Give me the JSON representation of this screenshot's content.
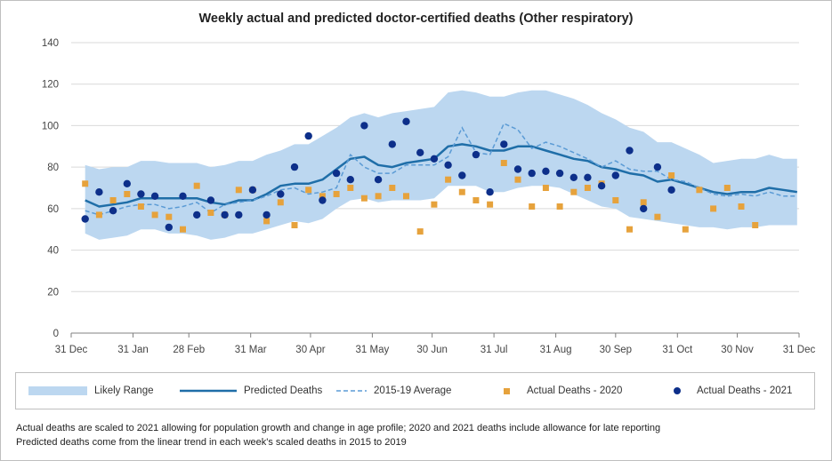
{
  "chart_data": {
    "type": "line",
    "title": "Weekly actual and predicted doctor-certified deaths (Other respiratory)",
    "xlabel": "",
    "ylabel": "",
    "ylim": [
      0,
      140
    ],
    "yticks": [
      0,
      20,
      40,
      60,
      80,
      100,
      120,
      140
    ],
    "xlim": [
      0,
      365
    ],
    "xticks": [
      {
        "label": "31 Dec",
        "day": 0
      },
      {
        "label": "31 Jan",
        "day": 31
      },
      {
        "label": "28 Feb",
        "day": 59
      },
      {
        "label": "31 Mar",
        "day": 90
      },
      {
        "label": "30 Apr",
        "day": 120
      },
      {
        "label": "31 May",
        "day": 151
      },
      {
        "label": "30 Jun",
        "day": 181
      },
      {
        "label": "31 Jul",
        "day": 212
      },
      {
        "label": "31 Aug",
        "day": 243
      },
      {
        "label": "30 Sep",
        "day": 273
      },
      {
        "label": "31 Oct",
        "day": 304
      },
      {
        "label": "30 Nov",
        "day": 334
      },
      {
        "label": "31 Dec",
        "day": 365
      }
    ],
    "x_week_days": [
      7,
      14,
      21,
      28,
      35,
      42,
      49,
      56,
      63,
      70,
      77,
      84,
      91,
      98,
      105,
      112,
      119,
      126,
      133,
      140,
      147,
      154,
      161,
      168,
      175,
      182,
      189,
      196,
      203,
      210,
      217,
      224,
      231,
      238,
      245,
      252,
      259,
      266,
      273,
      280,
      287,
      294,
      301,
      308,
      315,
      322,
      329,
      336,
      343,
      350,
      357,
      364
    ],
    "series": [
      {
        "name": "Likely Range",
        "kind": "band",
        "upper": [
          81,
          79,
          80,
          80,
          83,
          83,
          82,
          82,
          82,
          80,
          81,
          83,
          83,
          86,
          88,
          91,
          91,
          95,
          99,
          104,
          106,
          104,
          106,
          107,
          108,
          109,
          116,
          117,
          116,
          114,
          114,
          116,
          117,
          117,
          115,
          113,
          110,
          106,
          103,
          99,
          97,
          92,
          92,
          89,
          86,
          82,
          83,
          84,
          84,
          86,
          84,
          84
        ],
        "lower": [
          48,
          45,
          46,
          47,
          50,
          50,
          48,
          48,
          47,
          45,
          46,
          48,
          48,
          50,
          52,
          54,
          53,
          55,
          60,
          64,
          65,
          63,
          64,
          64,
          64,
          65,
          71,
          71,
          71,
          68,
          68,
          70,
          71,
          71,
          70,
          67,
          64,
          61,
          60,
          56,
          55,
          54,
          53,
          52,
          51,
          51,
          50,
          51,
          51,
          52,
          52,
          52
        ]
      },
      {
        "name": "Predicted Deaths",
        "kind": "line",
        "values": [
          64,
          61,
          62,
          63,
          65,
          65,
          65,
          65,
          65,
          63,
          62,
          64,
          64,
          67,
          71,
          72,
          72,
          74,
          79,
          84,
          85,
          81,
          80,
          82,
          83,
          84,
          90,
          91,
          90,
          88,
          88,
          90,
          90,
          88,
          86,
          84,
          83,
          80,
          79,
          77,
          76,
          73,
          74,
          72,
          70,
          68,
          67,
          68,
          68,
          70,
          69,
          68
        ]
      },
      {
        "name": "2015-19 Average",
        "kind": "dashed-line",
        "values": [
          59,
          57,
          59,
          61,
          62,
          62,
          60,
          61,
          63,
          58,
          62,
          63,
          64,
          66,
          69,
          70,
          67,
          68,
          70,
          86,
          80,
          77,
          77,
          81,
          81,
          81,
          85,
          99,
          87,
          86,
          101,
          98,
          89,
          92,
          90,
          87,
          84,
          80,
          83,
          79,
          78,
          78,
          74,
          73,
          70,
          67,
          66,
          67,
          66,
          68,
          66,
          66
        ]
      },
      {
        "name": "Actual Deaths - 2020",
        "kind": "squares",
        "values": [
          72,
          57,
          64,
          67,
          61,
          57,
          56,
          50,
          71,
          58,
          57,
          69,
          69,
          54,
          63,
          52,
          69,
          66,
          67,
          70,
          65,
          66,
          70,
          66,
          49,
          62,
          74,
          68,
          64,
          62,
          82,
          74,
          61,
          70,
          61,
          68,
          70,
          72,
          64,
          50,
          63,
          56,
          76,
          50,
          69,
          60,
          70,
          61,
          52
        ]
      },
      {
        "name": "Actual Deaths - 2021",
        "kind": "dots",
        "values": [
          55,
          68,
          59,
          72,
          67,
          66,
          51,
          66,
          57,
          64,
          57,
          57,
          69,
          57,
          67,
          80,
          95,
          64,
          77,
          74,
          100,
          74,
          91,
          102,
          87,
          84,
          81,
          76,
          86,
          68,
          91,
          79,
          77,
          78,
          77,
          75,
          75,
          71,
          76,
          88,
          60,
          80,
          69
        ]
      }
    ]
  },
  "legend": {
    "likely_range": "Likely Range",
    "predicted": "Predicted Deaths",
    "average": "2015-19 Average",
    "actual_2020": "Actual Deaths - 2020",
    "actual_2021": "Actual Deaths - 2021"
  },
  "footnotes": [
    "Actual deaths are scaled to 2021 allowing for population growth and change in age profile; 2020 and 2021 deaths include allowance for late reporting",
    "Predicted deaths come from the linear trend in each week's scaled deaths in 2015 to 2019"
  ],
  "colors": {
    "band": "#bcd7f0",
    "predicted": "#1f6ea8",
    "average": "#5b9bd5",
    "actual_2020": "#e6a23c",
    "actual_2021": "#0d2f8a",
    "grid": "#d9d9d9",
    "axis": "#808080"
  }
}
